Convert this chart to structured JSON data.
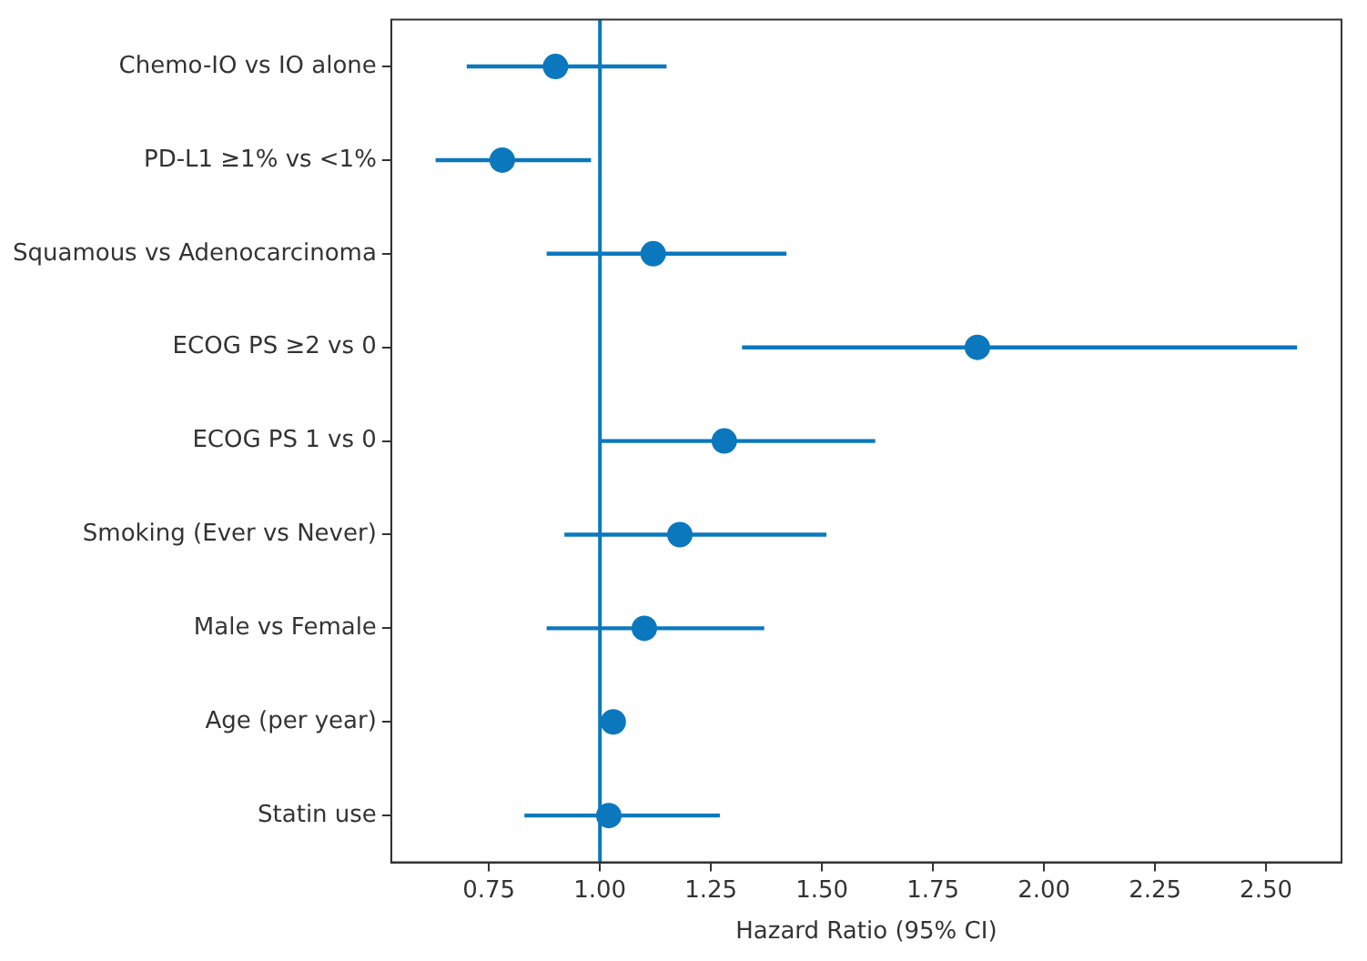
{
  "chart_data": {
    "type": "scatter",
    "orientation": "horizontal",
    "xlabel": "Hazard Ratio (95% CI)",
    "categories": [
      "Chemo-IO vs IO alone",
      "PD-L1 ≥1% vs <1%",
      "Squamous vs Adenocarcinoma",
      "ECOG PS ≥2 vs 0",
      "ECOG PS 1 vs 0",
      "Smoking (Ever vs Never)",
      "Male vs Female",
      "Age (per year)",
      "Statin use"
    ],
    "values": [
      0.9,
      0.78,
      1.12,
      1.85,
      1.28,
      1.18,
      1.1,
      1.03,
      1.02
    ],
    "errors": [
      [
        0.7,
        1.15
      ],
      [
        0.63,
        0.98
      ],
      [
        0.88,
        1.42
      ],
      [
        1.32,
        2.57
      ],
      [
        1.0,
        1.62
      ],
      [
        0.92,
        1.51
      ],
      [
        0.88,
        1.37
      ],
      null,
      [
        0.83,
        1.27
      ]
    ],
    "color": "#0b78be",
    "marker": "circle",
    "grid": false,
    "legend": false,
    "xlim": [
      0.53,
      2.67
    ],
    "xticks": [
      {
        "value": 0.75,
        "label": "0.75"
      },
      {
        "value": 1,
        "label": "1.00"
      },
      {
        "value": 1.25,
        "label": "1.25"
      },
      {
        "value": 1.5,
        "label": "1.50"
      },
      {
        "value": 1.75,
        "label": "1.75"
      },
      {
        "value": 2,
        "label": "2.00"
      },
      {
        "value": 2.25,
        "label": "2.25"
      },
      {
        "value": 2.5,
        "label": "2.50"
      }
    ],
    "ref_lines": [
      {
        "axis": "x",
        "value": 1,
        "color": "#0b78be"
      }
    ]
  }
}
